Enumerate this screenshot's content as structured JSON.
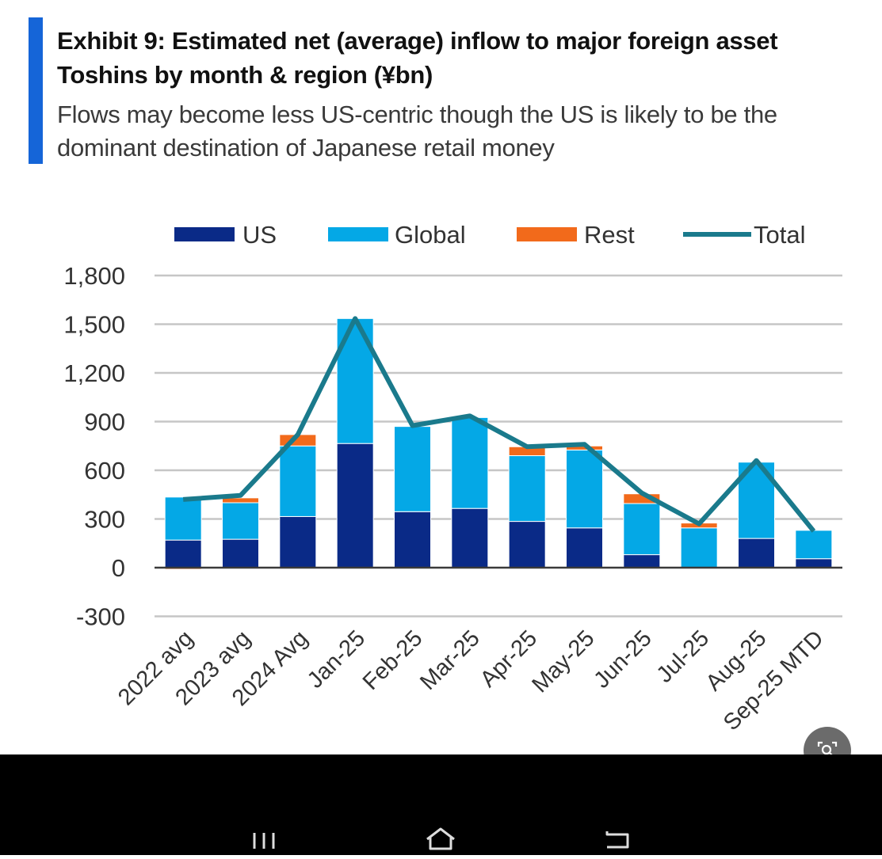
{
  "header": {
    "title": "Exhibit 9: Estimated net (average) inflow to major foreign asset Toshins by month & region (¥bn)",
    "subtitle": "Flows may become less US-centric though the US is likely to be the dominant destination of Japanese retail money"
  },
  "chart_data": {
    "type": "bar",
    "stacked": true,
    "categories": [
      "2022 avg",
      "2023 avg",
      "2024 Avg",
      "Jan-25",
      "Feb-25",
      "Mar-25",
      "Apr-25",
      "May-25",
      "Jun-25",
      "Jul-25",
      "Aug-25",
      "Sep-25 MTD"
    ],
    "series": [
      {
        "name": "US",
        "kind": "bar",
        "color": "#0a2a87",
        "values": [
          170,
          175,
          315,
          765,
          345,
          365,
          285,
          245,
          80,
          0,
          180,
          55
        ]
      },
      {
        "name": "Global",
        "kind": "bar",
        "color": "#04a8e6",
        "values": [
          265,
          225,
          435,
          770,
          525,
          560,
          405,
          480,
          315,
          245,
          470,
          175
        ]
      },
      {
        "name": "Rest",
        "kind": "bar",
        "color": "#f26a1b",
        "values": [
          -10,
          30,
          70,
          0,
          0,
          0,
          55,
          25,
          60,
          30,
          0,
          0
        ]
      },
      {
        "name": "Total",
        "kind": "line",
        "color": "#1a7a8c",
        "values": [
          420,
          445,
          820,
          1535,
          875,
          935,
          745,
          760,
          460,
          270,
          660,
          225
        ]
      }
    ],
    "yticks": [
      "1,800",
      "1,500",
      "1,200",
      "900",
      "600",
      "300",
      "0",
      "-300"
    ],
    "ylim": [
      -300,
      1800
    ],
    "grid": true,
    "legend_position": "top"
  },
  "icons": {
    "lens": "search-lens-icon",
    "menu": "menu-icon",
    "home": "home-icon",
    "back": "back-icon"
  }
}
